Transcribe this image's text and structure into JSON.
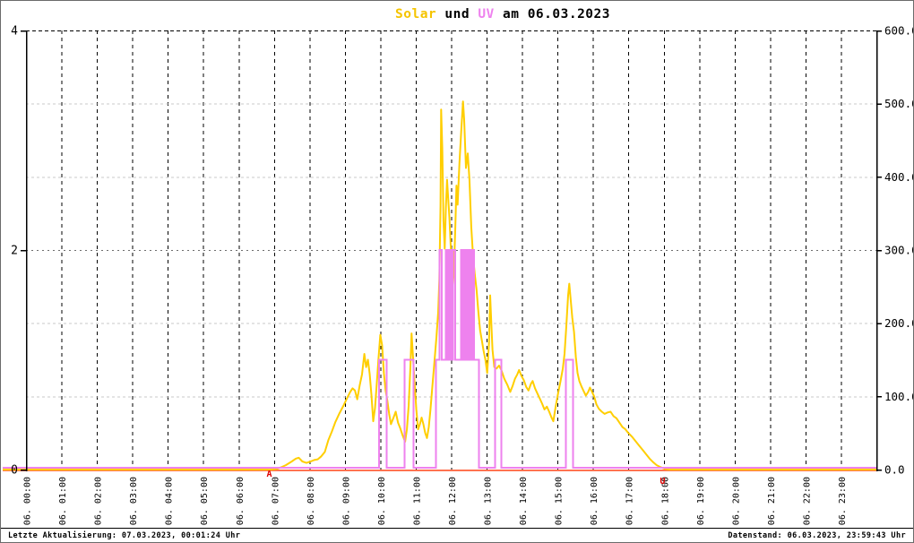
{
  "title": {
    "full": "Solar und UV am 06.03.2023",
    "parts": [
      {
        "text": "Solar",
        "color": "#f5c400"
      },
      {
        "text": " und ",
        "color": "#000000"
      },
      {
        "text": "UV",
        "color": "#ee82ee"
      },
      {
        "text": " am 06.03.2023",
        "color": "#000000"
      }
    ]
  },
  "footer": {
    "left": "Letzte Aktualisierung: 07.03.2023, 00:01:24 Uhr",
    "right": "Datenstand: 06.03.2023, 23:59:43 Uhr"
  },
  "colors": {
    "solar_line": "#ffce00",
    "uv_line": "#ee82ee",
    "zero_line": "#ff7350",
    "marker_red": "#dd0000",
    "grid_black": "#000000",
    "grid_mid": "#6e6e6e",
    "grid_light": "#c8c8c8",
    "axis": "#000000",
    "background": "#ffffff"
  },
  "chart_data": {
    "type": "line",
    "title": "Solar und UV am 06.03.2023",
    "grid": true,
    "x_axis": {
      "unit": "hour-of-day 06.03.2023",
      "range_minutes": [
        0,
        1440
      ],
      "tick_labels": [
        "06. 00:00",
        "06. 01:00",
        "06. 02:00",
        "06. 03:00",
        "06. 04:00",
        "06. 05:00",
        "06. 06:00",
        "06. 07:00",
        "06. 08:00",
        "06. 09:00",
        "06. 10:00",
        "06. 11:00",
        "06. 12:00",
        "06. 13:00",
        "06. 14:00",
        "06. 15:00",
        "06. 16:00",
        "06. 17:00",
        "06. 18:00",
        "06. 19:00",
        "06. 20:00",
        "06. 21:00",
        "06. 22:00",
        "06. 23:00"
      ],
      "label_rotation_deg": -90
    },
    "y_axis_left": {
      "series": "UV",
      "range": [
        0,
        4
      ],
      "tick_labels": [
        {
          "value": 0,
          "text": "0"
        },
        {
          "value": 2,
          "text": "2"
        },
        {
          "value": 4,
          "text": "4"
        }
      ]
    },
    "y_axis_right": {
      "series": "Solar",
      "range": [
        0,
        600
      ],
      "tick_labels": [
        {
          "value": 0,
          "text": "0.0"
        },
        {
          "value": 100,
          "text": "100.0"
        },
        {
          "value": 200,
          "text": "200.0"
        },
        {
          "value": 300,
          "text": "300.0"
        },
        {
          "value": 400,
          "text": "400.0"
        },
        {
          "value": 500,
          "text": "500.0"
        },
        {
          "value": 600,
          "text": "600.0"
        }
      ],
      "gridline_values_light": [
        100,
        200,
        400,
        500
      ],
      "gridline_value_mid": 300,
      "gridline_value_top": 600
    },
    "series": [
      {
        "name": "Solar",
        "axis": "right",
        "style": "jagged-line",
        "points": [
          [
            0,
            0
          ],
          [
            415,
            0
          ],
          [
            425,
            1
          ],
          [
            432,
            3
          ],
          [
            440,
            6
          ],
          [
            450,
            11
          ],
          [
            457,
            15
          ],
          [
            462,
            16
          ],
          [
            468,
            11
          ],
          [
            475,
            9
          ],
          [
            482,
            11
          ],
          [
            488,
            13
          ],
          [
            494,
            14
          ],
          [
            500,
            18
          ],
          [
            506,
            24
          ],
          [
            512,
            40
          ],
          [
            518,
            52
          ],
          [
            524,
            65
          ],
          [
            531,
            77
          ],
          [
            538,
            88
          ],
          [
            544,
            98
          ],
          [
            549,
            106
          ],
          [
            553,
            111
          ],
          [
            557,
            108
          ],
          [
            561,
            96
          ],
          [
            565,
            115
          ],
          [
            569,
            130
          ],
          [
            573,
            158
          ],
          [
            576,
            140
          ],
          [
            579,
            150
          ],
          [
            582,
            130
          ],
          [
            585,
            102
          ],
          [
            588,
            66
          ],
          [
            591,
            84
          ],
          [
            594,
            118
          ],
          [
            597,
            152
          ],
          [
            600,
            184
          ],
          [
            603,
            170
          ],
          [
            606,
            132
          ],
          [
            609,
            108
          ],
          [
            612,
            94
          ],
          [
            615,
            76
          ],
          [
            618,
            62
          ],
          [
            622,
            70
          ],
          [
            626,
            79
          ],
          [
            630,
            64
          ],
          [
            634,
            56
          ],
          [
            638,
            46
          ],
          [
            642,
            38
          ],
          [
            645,
            55
          ],
          [
            648,
            88
          ],
          [
            651,
            140
          ],
          [
            653,
            186
          ],
          [
            655,
            158
          ],
          [
            658,
            120
          ],
          [
            661,
            82
          ],
          [
            664,
            55
          ],
          [
            667,
            62
          ],
          [
            670,
            71
          ],
          [
            673,
            62
          ],
          [
            676,
            50
          ],
          [
            679,
            43
          ],
          [
            682,
            58
          ],
          [
            685,
            82
          ],
          [
            688,
            112
          ],
          [
            692,
            150
          ],
          [
            695,
            180
          ],
          [
            698,
            215
          ],
          [
            700,
            260
          ],
          [
            702,
            360
          ],
          [
            703,
            492
          ],
          [
            705,
            438
          ],
          [
            707,
            340
          ],
          [
            709,
            302
          ],
          [
            711,
            358
          ],
          [
            713,
            396
          ],
          [
            715,
            370
          ],
          [
            717,
            345
          ],
          [
            719,
            310
          ],
          [
            721,
            275
          ],
          [
            723,
            252
          ],
          [
            725,
            280
          ],
          [
            727,
            330
          ],
          [
            729,
            388
          ],
          [
            731,
            362
          ],
          [
            734,
            418
          ],
          [
            737,
            462
          ],
          [
            740,
            503
          ],
          [
            742,
            478
          ],
          [
            745,
            412
          ],
          [
            748,
            432
          ],
          [
            751,
            396
          ],
          [
            754,
            332
          ],
          [
            757,
            292
          ],
          [
            760,
            266
          ],
          [
            763,
            246
          ],
          [
            766,
            216
          ],
          [
            769,
            190
          ],
          [
            772,
            176
          ],
          [
            775,
            162
          ],
          [
            778,
            150
          ],
          [
            781,
            132
          ],
          [
            784,
            172
          ],
          [
            786,
            238
          ],
          [
            788,
            200
          ],
          [
            790,
            164
          ],
          [
            793,
            140
          ],
          [
            797,
            138
          ],
          [
            801,
            142
          ],
          [
            805,
            136
          ],
          [
            810,
            124
          ],
          [
            815,
            116
          ],
          [
            820,
            106
          ],
          [
            824,
            114
          ],
          [
            828,
            124
          ],
          [
            832,
            130
          ],
          [
            835,
            136
          ],
          [
            839,
            128
          ],
          [
            843,
            122
          ],
          [
            847,
            113
          ],
          [
            851,
            108
          ],
          [
            855,
            117
          ],
          [
            858,
            121
          ],
          [
            862,
            111
          ],
          [
            866,
            104
          ],
          [
            870,
            97
          ],
          [
            874,
            90
          ],
          [
            878,
            82
          ],
          [
            882,
            86
          ],
          [
            886,
            79
          ],
          [
            890,
            71
          ],
          [
            893,
            66
          ],
          [
            897,
            86
          ],
          [
            901,
            104
          ],
          [
            905,
            120
          ],
          [
            909,
            138
          ],
          [
            912,
            158
          ],
          [
            915,
            196
          ],
          [
            918,
            238
          ],
          [
            920,
            254
          ],
          [
            922,
            236
          ],
          [
            925,
            208
          ],
          [
            928,
            188
          ],
          [
            931,
            154
          ],
          [
            934,
            132
          ],
          [
            937,
            121
          ],
          [
            941,
            113
          ],
          [
            945,
            106
          ],
          [
            948,
            101
          ],
          [
            952,
            106
          ],
          [
            955,
            112
          ],
          [
            958,
            107
          ],
          [
            962,
            100
          ],
          [
            966,
            89
          ],
          [
            970,
            83
          ],
          [
            975,
            79
          ],
          [
            980,
            76
          ],
          [
            985,
            78
          ],
          [
            990,
            79
          ],
          [
            995,
            73
          ],
          [
            1000,
            70
          ],
          [
            1005,
            64
          ],
          [
            1010,
            58
          ],
          [
            1015,
            55
          ],
          [
            1020,
            50
          ],
          [
            1026,
            45
          ],
          [
            1032,
            39
          ],
          [
            1038,
            33
          ],
          [
            1044,
            27
          ],
          [
            1050,
            21
          ],
          [
            1056,
            15
          ],
          [
            1062,
            10
          ],
          [
            1068,
            6
          ],
          [
            1075,
            3
          ],
          [
            1082,
            1
          ],
          [
            1090,
            0
          ],
          [
            1440,
            0
          ]
        ]
      },
      {
        "name": "UV",
        "axis": "left",
        "style": "step",
        "start_value": 0,
        "changes": [
          [
            598,
            1
          ],
          [
            611,
            0
          ],
          [
            641,
            1
          ],
          [
            656,
            0
          ],
          [
            694,
            1
          ],
          [
            700,
            2
          ],
          [
            704,
            1
          ],
          [
            711,
            2
          ],
          [
            714,
            1
          ],
          [
            717,
            2
          ],
          [
            720,
            1
          ],
          [
            723,
            2
          ],
          [
            727,
            1
          ],
          [
            737,
            2
          ],
          [
            739,
            1
          ],
          [
            741,
            2
          ],
          [
            743,
            1
          ],
          [
            745,
            2
          ],
          [
            747,
            1
          ],
          [
            749,
            2
          ],
          [
            751,
            1
          ],
          [
            753,
            2
          ],
          [
            755,
            1
          ],
          [
            757,
            2
          ],
          [
            759,
            1
          ],
          [
            767,
            0
          ],
          [
            794,
            1
          ],
          [
            805,
            0
          ],
          [
            914,
            1
          ],
          [
            926,
            0
          ]
        ]
      }
    ],
    "markers": [
      {
        "label": "A",
        "minute": 412,
        "meaning": "shown red letter on baseline"
      },
      {
        "label": "U",
        "minute": 1078,
        "meaning": "shown red letter on baseline"
      }
    ],
    "legend_position": "none"
  }
}
